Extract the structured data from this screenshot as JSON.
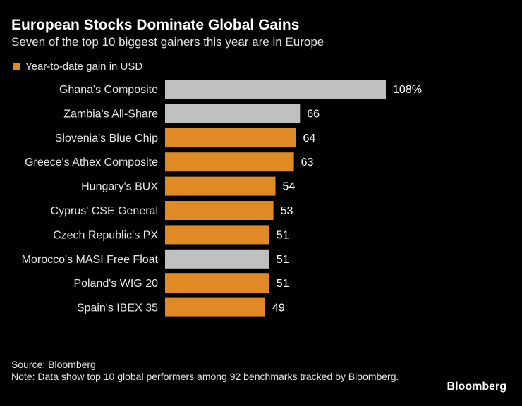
{
  "title": "European Stocks Dominate Global Gains",
  "subtitle": "Seven of the top 10 biggest gainers this year are in Europe",
  "legend": {
    "label": "Year-to-date gain in USD",
    "color": "#e08a25"
  },
  "footer": {
    "source": "Source: Bloomberg",
    "note": "Note: Data show top 10 global performers among 92 benchmarks tracked by Bloomberg."
  },
  "logo": "Bloomberg",
  "chart_data": {
    "type": "bar",
    "orientation": "horizontal",
    "categories": [
      "Ghana's Composite",
      "Zambia's All-Share",
      "Slovenia's Blue Chip",
      "Greece's Athex Composite",
      "Hungary's BUX",
      "Cyprus' CSE General",
      "Czech Republic's PX",
      "Morocco's MASI Free Float",
      "Poland's WIG 20",
      "Spain's IBEX 35"
    ],
    "values": [
      108,
      66,
      64,
      63,
      54,
      53,
      51,
      51,
      51,
      49
    ],
    "data_labels": [
      "108%",
      "66",
      "64",
      "63",
      "54",
      "53",
      "51",
      "51",
      "51",
      "49"
    ],
    "is_europe": [
      false,
      false,
      true,
      true,
      true,
      true,
      true,
      false,
      true,
      true
    ],
    "colors": {
      "europe": "#e08a25",
      "other": "#c0c0c0"
    },
    "xlim": [
      0,
      108
    ],
    "grid": false,
    "legend_position": "top-left"
  }
}
